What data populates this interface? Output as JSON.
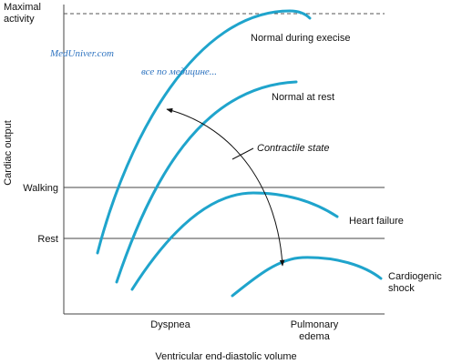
{
  "y_axis": {
    "title": "Cardiac output",
    "levels": [
      {
        "lines": [
          "Maximal",
          "activity"
        ]
      },
      {
        "lines": [
          "Walking"
        ]
      },
      {
        "lines": [
          "Rest"
        ]
      }
    ]
  },
  "x_axis": {
    "title": "Ventricular end-diastolic volume",
    "labels": [
      {
        "lines": [
          "Dyspnea"
        ]
      },
      {
        "lines": [
          "Pulmonary",
          "edema"
        ]
      }
    ]
  },
  "curves": [
    {
      "label": "Normal during execise"
    },
    {
      "label": "Normal at rest"
    },
    {
      "label": "Heart failure"
    },
    {
      "lines": [
        "Cardiogenic",
        "shock"
      ]
    }
  ],
  "annotations": {
    "contractile": "Contractile state"
  },
  "watermark": {
    "site": "MedUniver.com",
    "tagline": "все по медицине..."
  }
}
